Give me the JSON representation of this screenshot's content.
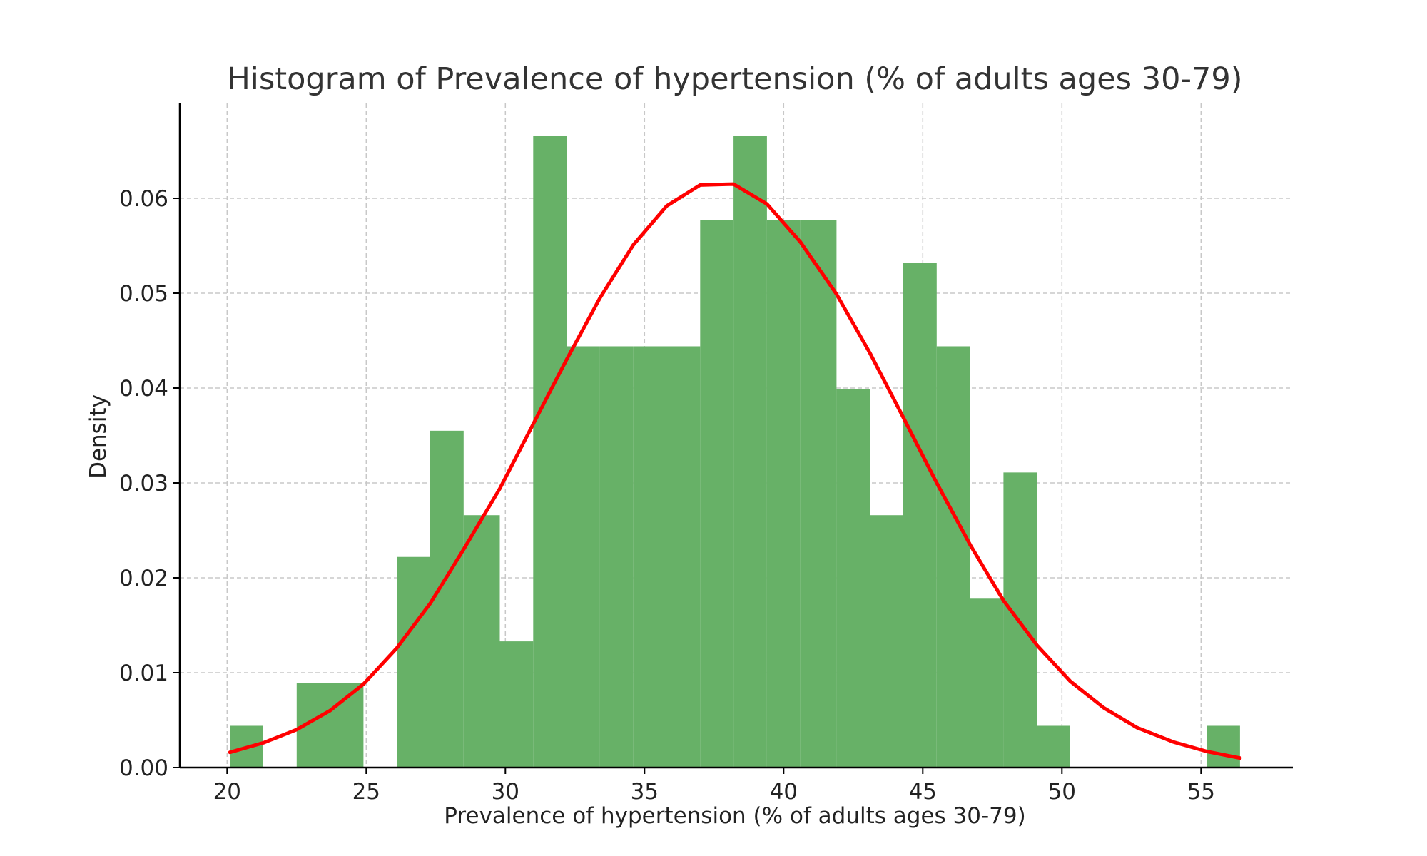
{
  "chart_data": {
    "type": "bar",
    "subtype": "histogram-with-density-curve",
    "title": "Histogram of Prevalence of hypertension (% of adults ages 30-79)",
    "xlabel": "Prevalence of hypertension (% of adults ages 30-79)",
    "ylabel": "Density",
    "xlim": [
      18.3,
      58.3
    ],
    "ylim": [
      0,
      0.07
    ],
    "x_ticks": [
      20,
      25,
      30,
      35,
      40,
      45,
      50,
      55
    ],
    "y_ticks": [
      0.0,
      0.01,
      0.02,
      0.03,
      0.04,
      0.05,
      0.06
    ],
    "y_tick_labels": [
      "0.00",
      "0.01",
      "0.02",
      "0.03",
      "0.04",
      "0.05",
      "0.06"
    ],
    "grid": true,
    "series": [
      {
        "kind": "histogram",
        "color": "#67b167",
        "bins": [
          {
            "x0": 20.1,
            "x1": 21.3,
            "density": 0.0044
          },
          {
            "x0": 21.3,
            "x1": 22.5,
            "density": 0.0
          },
          {
            "x0": 22.5,
            "x1": 23.7,
            "density": 0.0089
          },
          {
            "x0": 23.7,
            "x1": 24.9,
            "density": 0.0089
          },
          {
            "x0": 24.9,
            "x1": 26.1,
            "density": 0.0
          },
          {
            "x0": 26.1,
            "x1": 27.3,
            "density": 0.0222
          },
          {
            "x0": 27.3,
            "x1": 28.5,
            "density": 0.0355
          },
          {
            "x0": 28.5,
            "x1": 29.8,
            "density": 0.0266
          },
          {
            "x0": 29.8,
            "x1": 31.0,
            "density": 0.0133
          },
          {
            "x0": 31.0,
            "x1": 32.2,
            "density": 0.0666
          },
          {
            "x0": 32.2,
            "x1": 33.4,
            "density": 0.0444
          },
          {
            "x0": 33.4,
            "x1": 34.6,
            "density": 0.0444
          },
          {
            "x0": 34.6,
            "x1": 35.8,
            "density": 0.0444
          },
          {
            "x0": 35.8,
            "x1": 37.0,
            "density": 0.0444
          },
          {
            "x0": 37.0,
            "x1": 38.2,
            "density": 0.0577
          },
          {
            "x0": 38.2,
            "x1": 39.4,
            "density": 0.0666
          },
          {
            "x0": 39.4,
            "x1": 40.6,
            "density": 0.0577
          },
          {
            "x0": 40.6,
            "x1": 41.9,
            "density": 0.0577
          },
          {
            "x0": 41.9,
            "x1": 43.1,
            "density": 0.0399
          },
          {
            "x0": 43.1,
            "x1": 44.3,
            "density": 0.0266
          },
          {
            "x0": 44.3,
            "x1": 45.5,
            "density": 0.0532
          },
          {
            "x0": 45.5,
            "x1": 46.7,
            "density": 0.0444
          },
          {
            "x0": 46.7,
            "x1": 47.9,
            "density": 0.0178
          },
          {
            "x0": 47.9,
            "x1": 49.1,
            "density": 0.0311
          },
          {
            "x0": 49.1,
            "x1": 50.3,
            "density": 0.0044
          },
          {
            "x0": 50.3,
            "x1": 51.5,
            "density": 0.0
          },
          {
            "x0": 51.5,
            "x1": 52.7,
            "density": 0.0
          },
          {
            "x0": 52.7,
            "x1": 54.0,
            "density": 0.0
          },
          {
            "x0": 54.0,
            "x1": 55.2,
            "density": 0.0
          },
          {
            "x0": 55.2,
            "x1": 56.4,
            "density": 0.0044
          }
        ]
      },
      {
        "kind": "line",
        "color": "#ff0000",
        "x": [
          20.1,
          21.3,
          22.5,
          23.7,
          24.9,
          26.1,
          27.3,
          28.5,
          29.8,
          31.0,
          32.2,
          33.4,
          34.6,
          35.8,
          37.0,
          38.2,
          39.4,
          40.6,
          41.9,
          43.1,
          44.3,
          45.5,
          46.7,
          47.9,
          49.1,
          50.3,
          51.5,
          52.7,
          54.0,
          55.2,
          56.4
        ],
        "y": [
          0.0016,
          0.0026,
          0.004,
          0.006,
          0.0088,
          0.0126,
          0.0173,
          0.023,
          0.0294,
          0.0362,
          0.043,
          0.0495,
          0.0551,
          0.0592,
          0.0614,
          0.0615,
          0.0594,
          0.0554,
          0.0499,
          0.0437,
          0.0369,
          0.03,
          0.0235,
          0.0176,
          0.0129,
          0.0091,
          0.0063,
          0.0042,
          0.0027,
          0.0017,
          0.001
        ]
      }
    ]
  }
}
